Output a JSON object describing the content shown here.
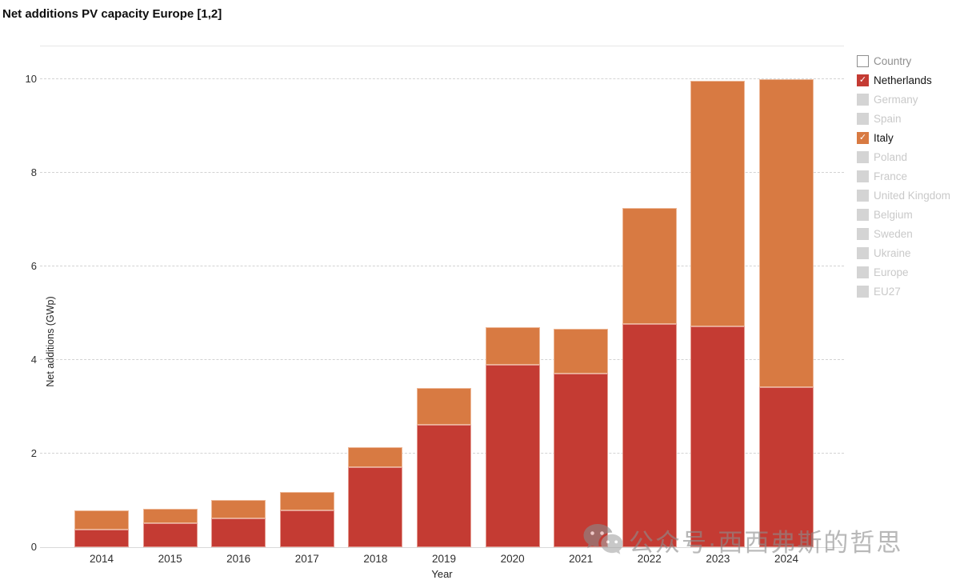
{
  "header": {
    "title": "Net additions PV capacity Europe [1,2]"
  },
  "chart_data": {
    "type": "bar",
    "stacked": true,
    "title": "Net additions PV capacity Europe [1,2]",
    "xlabel": "Year",
    "ylabel": "Net additions (GWp)",
    "ylim": [
      0,
      10.71
    ],
    "yticks": [
      0,
      2,
      4,
      6,
      8,
      10
    ],
    "grid": "horizontal-dashed",
    "legend_position": "right",
    "categories": [
      "2014",
      "2015",
      "2016",
      "2017",
      "2018",
      "2019",
      "2020",
      "2021",
      "2022",
      "2023",
      "2024"
    ],
    "series": [
      {
        "name": "Netherlands",
        "color": "#c43b33",
        "values": [
          0.37,
          0.51,
          0.61,
          0.78,
          1.7,
          2.62,
          3.89,
          3.7,
          4.77,
          4.71,
          3.42
        ]
      },
      {
        "name": "Italy",
        "color": "#d87a42",
        "values": [
          0.41,
          0.31,
          0.4,
          0.4,
          0.44,
          0.78,
          0.8,
          0.97,
          2.48,
          5.25,
          6.58
        ]
      }
    ]
  },
  "legend": {
    "items": [
      {
        "label": "Country",
        "checked": false,
        "header": true,
        "box": "empty"
      },
      {
        "label": "Netherlands",
        "checked": true,
        "header": false,
        "box": "#c43b33"
      },
      {
        "label": "Germany",
        "checked": false,
        "header": false,
        "box": "gray"
      },
      {
        "label": "Spain",
        "checked": false,
        "header": false,
        "box": "gray"
      },
      {
        "label": "Italy",
        "checked": true,
        "header": false,
        "box": "#d87a42"
      },
      {
        "label": "Poland",
        "checked": false,
        "header": false,
        "box": "gray"
      },
      {
        "label": "France",
        "checked": false,
        "header": false,
        "box": "gray"
      },
      {
        "label": "United Kingdom",
        "checked": false,
        "header": false,
        "box": "gray"
      },
      {
        "label": "Belgium",
        "checked": false,
        "header": false,
        "box": "gray"
      },
      {
        "label": "Sweden",
        "checked": false,
        "header": false,
        "box": "gray"
      },
      {
        "label": "Ukraine",
        "checked": false,
        "header": false,
        "box": "gray"
      },
      {
        "label": "Europe",
        "checked": false,
        "header": false,
        "box": "gray"
      },
      {
        "label": "EU27",
        "checked": false,
        "header": false,
        "box": "gray"
      }
    ],
    "checkmark_glyph": "✓"
  },
  "watermark": {
    "text": "公众号·西西弗斯的哲思"
  },
  "colors": {
    "netherlands_red": "#c43b33",
    "italy_orange": "#d87a42",
    "gridline": "#d3d3d3",
    "muted_text": "#c9c9c9"
  }
}
